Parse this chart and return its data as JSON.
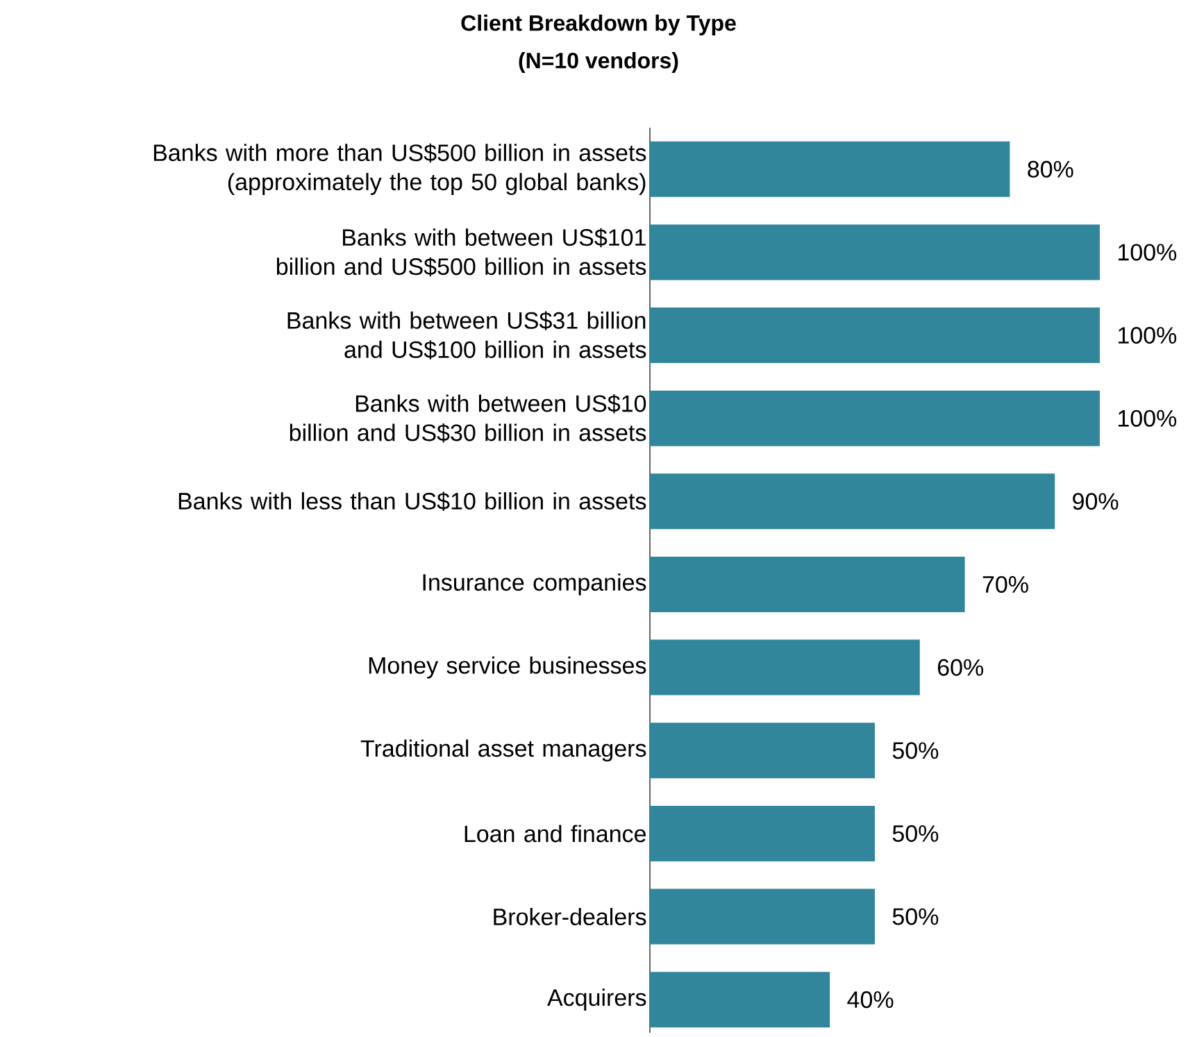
{
  "chart_data": {
    "type": "bar",
    "orientation": "horizontal",
    "title": "Client Breakdown by Type",
    "subtitle": "(N=10 vendors)",
    "categories": [
      "Banks with more than US$500 billion in assets (approximately the top 50 global banks)",
      "Banks with between US$101 billion and US$500 billion in assets",
      "Banks with between US$31 billion and US$100 billion in assets",
      "Banks with between US$10 billion and US$30 billion in assets",
      "Banks with less than US$10 billion in assets",
      "Insurance companies",
      "Money service businesses",
      "Traditional asset managers",
      "Loan and finance",
      "Broker-dealers",
      "Acquirers"
    ],
    "values": [
      80,
      100,
      100,
      100,
      90,
      70,
      60,
      50,
      50,
      50,
      40
    ],
    "value_labels": [
      "80%",
      "100%",
      "100%",
      "100%",
      "90%",
      "70%",
      "60%",
      "50%",
      "50%",
      "50%",
      "40%"
    ],
    "color": "#31869b"
  }
}
